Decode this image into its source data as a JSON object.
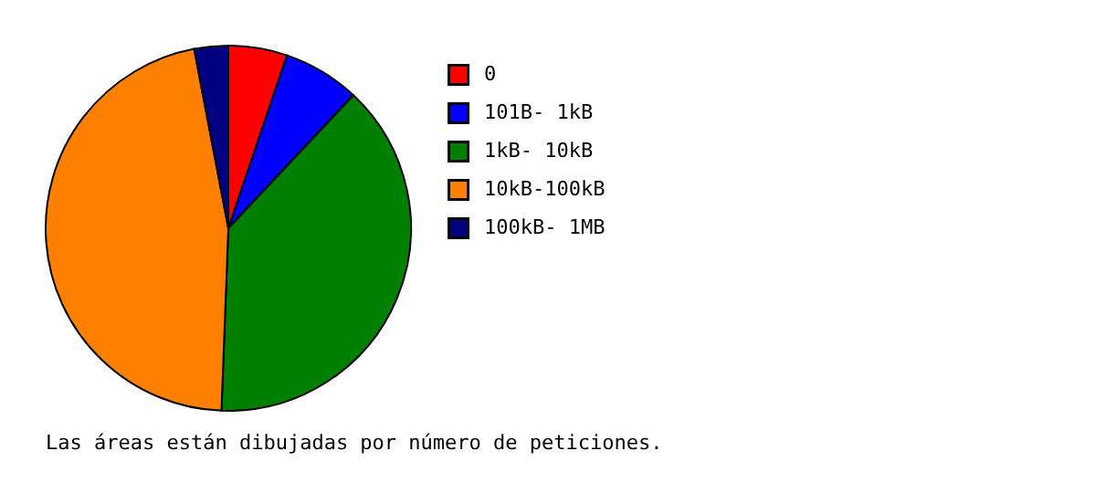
{
  "chart_data": {
    "type": "pie",
    "categories": [
      "0",
      "101B-  1kB",
      "1kB- 10kB",
      "10kB-100kB",
      "100kB-  1MB"
    ],
    "values": [
      5.2,
      6.8,
      38.6,
      46.4,
      3.0
    ],
    "colors": [
      "#ff0000",
      "#0000ff",
      "#008000",
      "#ff8000",
      "#000080"
    ],
    "legend": "top right",
    "annotations": [
      "Las áreas están dibujadas por número de peticiones."
    ]
  }
}
